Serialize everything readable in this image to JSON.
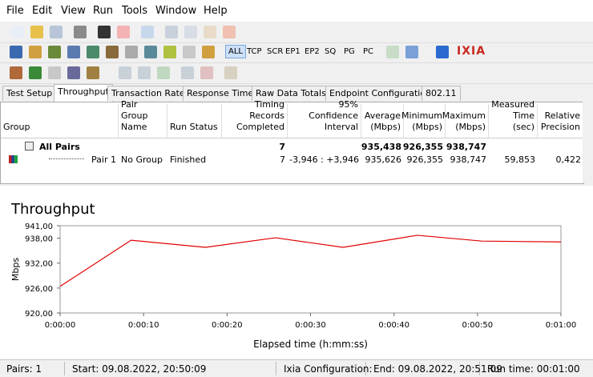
{
  "menu": [
    "File",
    "Edit",
    "View",
    "Run",
    "Tools",
    "Window",
    "Help"
  ],
  "toolbar_buttons": [
    "ALL",
    "TCP",
    "SCR",
    "EP1",
    "EP2",
    "SQ",
    "PG",
    "PC"
  ],
  "logo": "IXIA",
  "tabs": [
    "Test Setup",
    "Throughput",
    "Transaction Rate",
    "Response Time",
    "Raw Data Totals",
    "Endpoint Configuration",
    "802.11"
  ],
  "table": {
    "columns": [
      "Group",
      "Pair Group Name",
      "Run Status",
      "Timing Records Completed",
      "95% Confidence Interval",
      "Average (Mbps)",
      "Minimum (Mbps)",
      "Maximum (Mbps)",
      "Measured Time (sec)",
      "Relative Precision"
    ],
    "rows": [
      [
        "All Pairs",
        null,
        null,
        "7",
        null,
        "935,438",
        "926,355",
        "938,747",
        null,
        null
      ],
      [
        "Pair 1",
        "No Group",
        "Finished",
        "7",
        "-3,946 : +3,946",
        "935,626",
        "926,355",
        "938,747",
        "59,853",
        "0,422"
      ]
    ]
  },
  "chart_data": {
    "type": "line",
    "title": "Throughput",
    "x_label": "Elapsed time (h:mm:ss)",
    "y_label": "Mbps",
    "x": [
      0,
      8.5,
      17.4,
      25.8,
      33.9,
      42.8,
      50.5,
      60
    ],
    "values": [
      926.4,
      937.5,
      935.8,
      938.1,
      935.8,
      938.7,
      937.3,
      937.1
    ],
    "color": "#e00000",
    "xlim": [
      0,
      60
    ],
    "xticks": [
      {
        "value": 0,
        "label": "0:00:00"
      },
      {
        "value": 10,
        "label": "0:00:10"
      },
      {
        "value": 20,
        "label": "0:00:20"
      },
      {
        "value": 30,
        "label": "0:00:30"
      },
      {
        "value": 40,
        "label": "0:00:40"
      },
      {
        "value": 50,
        "label": "0:00:50"
      },
      {
        "value": 60,
        "label": "0:01:00"
      }
    ],
    "ylim": [
      920,
      941
    ],
    "yticks": [
      {
        "value": 920,
        "label": "920,00"
      },
      {
        "value": 926,
        "label": "926,00"
      },
      {
        "value": 932,
        "label": "932,00"
      },
      {
        "value": 938,
        "label": "938,00"
      },
      {
        "value": 941,
        "label": "941,00"
      }
    ]
  },
  "status": [
    "Pairs: 1",
    "Start: 09.08.2022, 20:50:09",
    "Ixia Configuration:",
    "End: 09.08.2022, 20:51:09",
    "Run time: 00:01:00"
  ]
}
